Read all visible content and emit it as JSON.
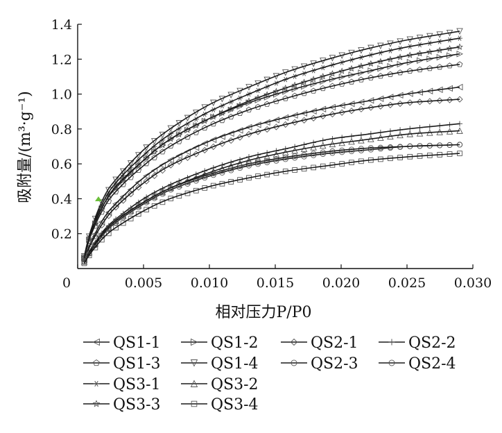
{
  "chart_data": {
    "type": "line",
    "title": "",
    "xlabel": "相对压力P/P0",
    "ylabel": "吸附量/(m³·g⁻¹)",
    "xlim": [
      0,
      0.03
    ],
    "ylim": [
      0,
      1.4
    ],
    "x_ticks": [
      "0",
      "0.005",
      "0.010",
      "0.015",
      "0.020",
      "0.025",
      "0.030"
    ],
    "y_ticks": [
      "0.2",
      "0.4",
      "0.6",
      "0.8",
      "1.0",
      "1.2",
      "1.4"
    ],
    "grid": false,
    "legend_position": "bottom",
    "marker_color": "#555555",
    "line_color": "#1a1a1a",
    "highlight_color": "#6bbf3a",
    "x": [
      0.0005,
      0.001,
      0.002,
      0.003,
      0.005,
      0.007,
      0.01,
      0.013,
      0.016,
      0.019,
      0.022,
      0.025,
      0.029
    ],
    "series": [
      {
        "name": "QS1-1",
        "marker": "triangle-left",
        "values": [
          0.05,
          0.15,
          0.29,
          0.38,
          0.52,
          0.62,
          0.73,
          0.81,
          0.87,
          0.92,
          0.96,
          1.0,
          1.04
        ]
      },
      {
        "name": "QS1-2",
        "marker": "triangle-right",
        "values": [
          0.06,
          0.2,
          0.37,
          0.47,
          0.62,
          0.74,
          0.86,
          0.95,
          1.02,
          1.08,
          1.13,
          1.18,
          1.23
        ]
      },
      {
        "name": "QS2-1",
        "marker": "diamond",
        "values": [
          0.05,
          0.14,
          0.27,
          0.36,
          0.49,
          0.59,
          0.69,
          0.77,
          0.83,
          0.88,
          0.92,
          0.95,
          0.97
        ]
      },
      {
        "name": "QS2-2",
        "marker": "plus",
        "values": [
          0.04,
          0.11,
          0.22,
          0.29,
          0.4,
          0.48,
          0.57,
          0.64,
          0.69,
          0.74,
          0.77,
          0.8,
          0.83
        ]
      },
      {
        "name": "QS1-3",
        "marker": "pentagon",
        "values": [
          0.06,
          0.19,
          0.35,
          0.45,
          0.59,
          0.7,
          0.82,
          0.91,
          0.98,
          1.04,
          1.09,
          1.13,
          1.17
        ]
      },
      {
        "name": "QS1-4",
        "marker": "triangle-down",
        "values": [
          0.07,
          0.22,
          0.41,
          0.52,
          0.68,
          0.8,
          0.94,
          1.04,
          1.13,
          1.2,
          1.26,
          1.31,
          1.36
        ]
      },
      {
        "name": "QS2-3",
        "marker": "circle",
        "values": [
          0.04,
          0.1,
          0.2,
          0.27,
          0.37,
          0.45,
          0.53,
          0.59,
          0.63,
          0.66,
          0.68,
          0.7,
          0.71
        ]
      },
      {
        "name": "QS2-4",
        "marker": "circle",
        "values": [
          0.04,
          0.1,
          0.21,
          0.28,
          0.38,
          0.46,
          0.54,
          0.6,
          0.64,
          0.67,
          0.69,
          0.7,
          0.71
        ]
      },
      {
        "name": "QS3-1",
        "marker": "asterisk",
        "values": [
          0.07,
          0.21,
          0.39,
          0.5,
          0.65,
          0.77,
          0.9,
          1.0,
          1.09,
          1.16,
          1.22,
          1.27,
          1.32
        ]
      },
      {
        "name": "QS3-2",
        "marker": "triangle-up",
        "values": [
          0.04,
          0.11,
          0.21,
          0.28,
          0.38,
          0.46,
          0.55,
          0.62,
          0.67,
          0.71,
          0.74,
          0.77,
          0.79
        ]
      },
      {
        "name": "QS3-3",
        "marker": "star",
        "values": [
          0.06,
          0.2,
          0.37,
          0.48,
          0.62,
          0.74,
          0.86,
          0.96,
          1.04,
          1.11,
          1.17,
          1.22,
          1.27
        ]
      },
      {
        "name": "QS3-4",
        "marker": "square",
        "values": [
          0.03,
          0.09,
          0.18,
          0.24,
          0.33,
          0.4,
          0.47,
          0.52,
          0.56,
          0.59,
          0.62,
          0.64,
          0.66
        ]
      }
    ]
  }
}
